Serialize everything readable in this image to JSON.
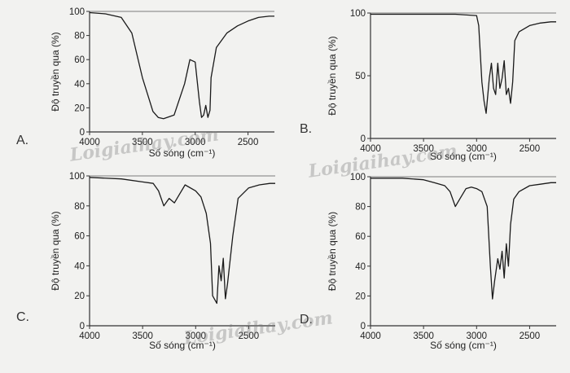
{
  "watermark": "Loigiaihay.com",
  "chart_data": [
    {
      "type": "line",
      "panel_label": "A.",
      "ylabel": "Độ truyền qua (%)",
      "xlabel": "Số sóng (cm⁻¹)",
      "xlim": [
        4000,
        2250
      ],
      "ylim": [
        0,
        100
      ],
      "xticks": [
        4000,
        3500,
        3000,
        2500
      ],
      "yticks": [
        0,
        20,
        40,
        60,
        80,
        100
      ],
      "series": [
        {
          "x": [
            4000,
            3850,
            3700,
            3600,
            3500,
            3400,
            3350,
            3300,
            3200,
            3100,
            3050,
            3000,
            2960,
            2940,
            2920,
            2900,
            2880,
            2860,
            2850,
            2800,
            2700,
            2600,
            2500,
            2400,
            2300,
            2250
          ],
          "y": [
            99,
            98,
            95,
            82,
            45,
            17,
            12,
            11,
            14,
            40,
            60,
            58,
            25,
            12,
            14,
            22,
            12,
            18,
            45,
            70,
            82,
            88,
            92,
            95,
            96,
            96
          ]
        }
      ]
    },
    {
      "type": "line",
      "panel_label": "B.",
      "ylabel": "Độ truyền qua (%)",
      "xlabel": "Số sóng (cm⁻¹)",
      "xlim": [
        4000,
        2250
      ],
      "ylim": [
        0,
        100
      ],
      "xticks": [
        4000,
        3500,
        3000,
        2500
      ],
      "yticks": [
        0,
        50,
        100
      ],
      "series": [
        {
          "x": [
            4000,
            3500,
            3200,
            3000,
            2980,
            2950,
            2930,
            2910,
            2880,
            2860,
            2840,
            2820,
            2800,
            2780,
            2760,
            2740,
            2720,
            2700,
            2680,
            2660,
            2640,
            2600,
            2500,
            2400,
            2300,
            2250
          ],
          "y": [
            99,
            99,
            99,
            98,
            90,
            45,
            30,
            20,
            48,
            60,
            40,
            35,
            60,
            40,
            48,
            62,
            35,
            40,
            28,
            45,
            78,
            85,
            90,
            92,
            93,
            93
          ]
        }
      ]
    },
    {
      "type": "line",
      "panel_label": "C.",
      "ylabel": "Độ truyền qua (%)",
      "xlabel": "Số sóng (cm⁻¹)",
      "xlim": [
        4000,
        2250
      ],
      "ylim": [
        0,
        100
      ],
      "xticks": [
        4000,
        3500,
        3000,
        2500
      ],
      "yticks": [
        0,
        20,
        40,
        60,
        80,
        100
      ],
      "series": [
        {
          "x": [
            4000,
            3700,
            3500,
            3400,
            3350,
            3300,
            3250,
            3200,
            3150,
            3100,
            3000,
            2950,
            2900,
            2860,
            2840,
            2800,
            2780,
            2760,
            2740,
            2720,
            2700,
            2650,
            2600,
            2500,
            2400,
            2300,
            2250
          ],
          "y": [
            99,
            98,
            96,
            95,
            90,
            80,
            85,
            82,
            88,
            94,
            90,
            86,
            75,
            55,
            20,
            15,
            40,
            30,
            45,
            18,
            28,
            60,
            85,
            92,
            94,
            95,
            95
          ]
        }
      ]
    },
    {
      "type": "line",
      "panel_label": "D.",
      "ylabel": "Độ truyền qua (%)",
      "xlabel": "Số sóng (cm⁻¹)",
      "xlim": [
        4000,
        2250
      ],
      "ylim": [
        0,
        100
      ],
      "xticks": [
        4000,
        3500,
        3000,
        2500
      ],
      "yticks": [
        0,
        20,
        40,
        60,
        80,
        100
      ],
      "series": [
        {
          "x": [
            4000,
            3700,
            3500,
            3400,
            3300,
            3250,
            3200,
            3150,
            3100,
            3050,
            3000,
            2950,
            2900,
            2870,
            2850,
            2830,
            2800,
            2780,
            2760,
            2740,
            2720,
            2700,
            2680,
            2650,
            2600,
            2500,
            2400,
            2300,
            2250
          ],
          "y": [
            99,
            99,
            98,
            96,
            94,
            90,
            80,
            86,
            92,
            93,
            92,
            90,
            80,
            40,
            18,
            30,
            45,
            38,
            50,
            32,
            55,
            40,
            68,
            85,
            90,
            94,
            95,
            96,
            96
          ]
        }
      ]
    }
  ]
}
